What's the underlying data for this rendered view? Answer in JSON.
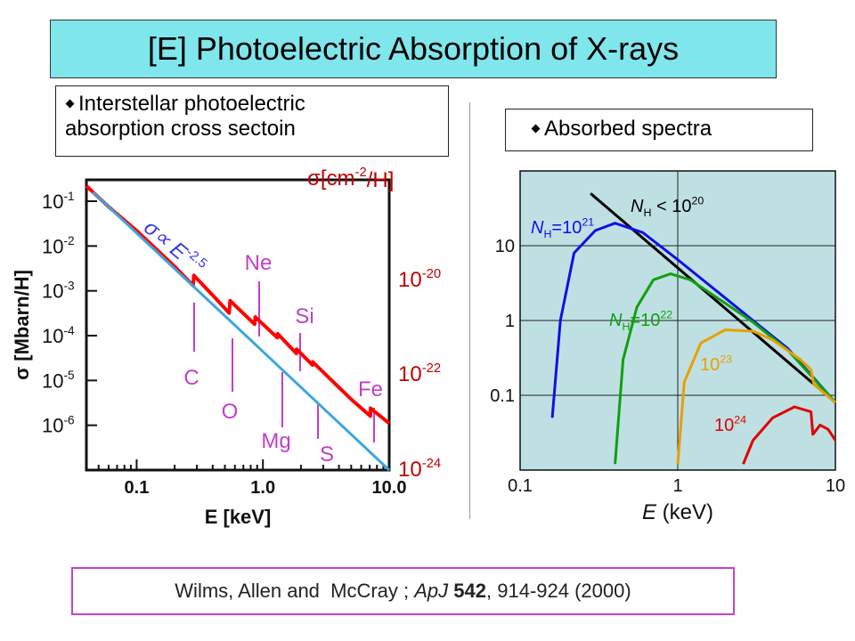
{
  "title": "[E] Photoelectric Absorption of X-rays",
  "left_box": {
    "line1": "Interstellar photoelectric",
    "line2": "absorption cross sectoin"
  },
  "right_box": {
    "text": "Absorbed spectra"
  },
  "citation": {
    "authors": "Wilms, Allen and  McCray ; ",
    "journal": "ApJ",
    "volume": "542",
    "pages": ", 914-924 (2000)"
  },
  "colors": {
    "title_bg": "#7fe6ec",
    "plot_bg": "#bfe0e3",
    "citation_border": "#c044c9",
    "element_label": "#c040c8",
    "sigma_label": "#c00000"
  },
  "chart_data": [
    {
      "type": "line",
      "xlabel": "E [keV]",
      "ylabel": "σ [Mbarn/H]",
      "x_scale": "log",
      "y_scale": "log",
      "xlim": [
        0.04,
        10.0
      ],
      "ylim": [
        1e-07,
        0.3
      ],
      "x_ticks": [
        "0.1",
        "1.0",
        "10.0"
      ],
      "y_ticks": [
        "10-1",
        "10-2",
        "10-3",
        "10-4",
        "10-5",
        "10-6"
      ],
      "right_axis_label": "σ[cm-2/H]",
      "right_ticks": [
        {
          "base": "10",
          "exp": "-20",
          "y": 0.004
        },
        {
          "base": "10",
          "exp": "-22",
          "y": 4e-05
        },
        {
          "base": "10",
          "exp": "-24",
          "y": 4e-07
        }
      ],
      "annotation_power_law": {
        "lhs": "σ∝ E",
        "exp": "-2.5"
      },
      "edges": [
        {
          "element": "C",
          "energy": 0.284
        },
        {
          "element": "O",
          "energy": 0.543
        },
        {
          "element": "Ne",
          "energy": 0.87
        },
        {
          "element": "Mg",
          "energy": 1.3
        },
        {
          "element": "Si",
          "energy": 1.84
        },
        {
          "element": "S",
          "energy": 2.47
        },
        {
          "element": "Fe",
          "energy": 7.11
        }
      ],
      "series": [
        {
          "color": "#ff0000",
          "points": [
            [
              0.04,
              0.22
            ],
            [
              0.06,
              0.075
            ],
            [
              0.1,
              0.022
            ],
            [
              0.2,
              0.0035
            ],
            [
              0.28,
              0.0013
            ],
            [
              0.284,
              0.0022
            ],
            [
              0.4,
              0.0008
            ],
            [
              0.54,
              0.00032
            ],
            [
              0.55,
              0.0006
            ],
            [
              0.86,
              0.00018
            ],
            [
              0.87,
              0.00026
            ],
            [
              1.3,
              9e-05
            ],
            [
              1.31,
              0.00011
            ],
            [
              1.84,
              4e-05
            ],
            [
              1.85,
              5e-05
            ],
            [
              2.47,
              2.2e-05
            ],
            [
              2.48,
              2.6e-05
            ],
            [
              5,
              3.8e-06
            ],
            [
              7.1,
              1.6e-06
            ],
            [
              7.11,
              2.4e-06
            ],
            [
              10,
              1.1e-06
            ]
          ]
        },
        {
          "color": "#3aa6e0",
          "points": [
            [
              0.045,
              0.16
            ],
            [
              10,
              1e-07
            ]
          ]
        }
      ]
    },
    {
      "type": "line",
      "xlabel": "E (keV)",
      "x_scale": "log",
      "y_scale": "log",
      "xlim": [
        0.1,
        10
      ],
      "ylim": [
        0.01,
        100
      ],
      "x_ticks": [
        "0.1",
        "1",
        "10"
      ],
      "y_ticks": [
        "10",
        "1",
        "0.1"
      ],
      "series_labels": [
        {
          "pre": "N",
          "sub": "H",
          "mid": " < 10",
          "sup": "20",
          "color": "#000000"
        },
        {
          "pre": "N",
          "sub": "H",
          "mid": "=10",
          "sup": "21",
          "color": "#1010e0"
        },
        {
          "pre": "N",
          "sub": "H",
          "mid": "=10",
          "sup": "22",
          "color": "#10a010"
        },
        {
          "pre": "",
          "sub": "",
          "mid": "10",
          "sup": "23",
          "color": "#e8a000"
        },
        {
          "pre": "",
          "sub": "",
          "mid": "10",
          "sup": "24",
          "color": "#e00000"
        }
      ],
      "series": [
        {
          "color": "#000000",
          "points": [
            [
              0.28,
              50
            ],
            [
              10,
              0.08
            ]
          ]
        },
        {
          "color": "#1010e0",
          "points": [
            [
              0.16,
              0.05
            ],
            [
              0.18,
              1
            ],
            [
              0.22,
              8
            ],
            [
              0.3,
              16
            ],
            [
              0.4,
              20
            ],
            [
              0.6,
              15
            ],
            [
              1,
              6.5
            ],
            [
              2,
              2
            ],
            [
              3,
              1
            ],
            [
              5,
              0.42
            ],
            [
              10,
              0.08
            ]
          ]
        },
        {
          "color": "#10a010",
          "points": [
            [
              0.4,
              0.012
            ],
            [
              0.45,
              0.3
            ],
            [
              0.55,
              1.5
            ],
            [
              0.7,
              3.5
            ],
            [
              0.9,
              4.2
            ],
            [
              1.2,
              3.5
            ],
            [
              2,
              1.7
            ],
            [
              3,
              0.95
            ],
            [
              5,
              0.4
            ],
            [
              10,
              0.08
            ]
          ]
        },
        {
          "color": "#e8a000",
          "points": [
            [
              1.0,
              0.012
            ],
            [
              1.1,
              0.15
            ],
            [
              1.4,
              0.5
            ],
            [
              2,
              0.75
            ],
            [
              3,
              0.72
            ],
            [
              4,
              0.55
            ],
            [
              6,
              0.3
            ],
            [
              7,
              0.22
            ],
            [
              7.3,
              0.14
            ],
            [
              10,
              0.08
            ]
          ]
        },
        {
          "color": "#e00000",
          "points": [
            [
              2.6,
              0.012
            ],
            [
              3,
              0.025
            ],
            [
              4,
              0.05
            ],
            [
              5.5,
              0.07
            ],
            [
              7,
              0.06
            ],
            [
              7.2,
              0.03
            ],
            [
              8,
              0.04
            ],
            [
              9,
              0.035
            ],
            [
              10,
              0.025
            ]
          ]
        }
      ]
    }
  ]
}
